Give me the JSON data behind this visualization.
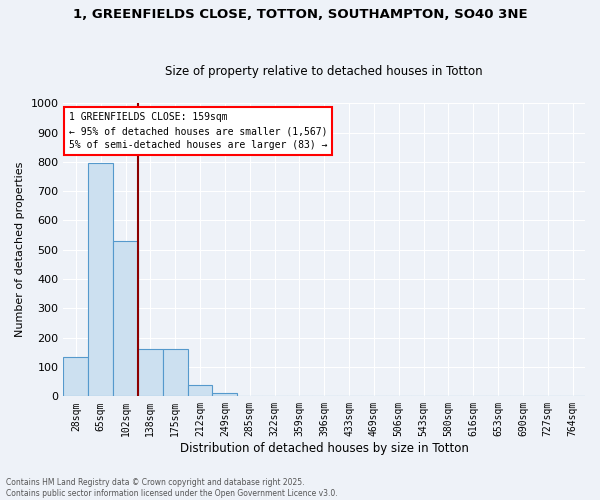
{
  "title_line1": "1, GREENFIELDS CLOSE, TOTTON, SOUTHAMPTON, SO40 3NE",
  "title_line2": "Size of property relative to detached houses in Totton",
  "xlabel": "Distribution of detached houses by size in Totton",
  "ylabel": "Number of detached properties",
  "categories": [
    "28sqm",
    "65sqm",
    "102sqm",
    "138sqm",
    "175sqm",
    "212sqm",
    "249sqm",
    "285sqm",
    "322sqm",
    "359sqm",
    "396sqm",
    "433sqm",
    "469sqm",
    "506sqm",
    "543sqm",
    "580sqm",
    "616sqm",
    "653sqm",
    "690sqm",
    "727sqm",
    "764sqm"
  ],
  "values": [
    133,
    795,
    530,
    160,
    160,
    37,
    10,
    0,
    0,
    0,
    0,
    0,
    0,
    0,
    0,
    0,
    0,
    0,
    0,
    0,
    0
  ],
  "bar_color": "#cce0f0",
  "bar_edge_color": "#5599cc",
  "ylim": [
    0,
    1000
  ],
  "yticks": [
    0,
    100,
    200,
    300,
    400,
    500,
    600,
    700,
    800,
    900,
    1000
  ],
  "annotation_box_text": "1 GREENFIELDS CLOSE: 159sqm\n← 95% of detached houses are smaller (1,567)\n5% of semi-detached houses are larger (83) →",
  "property_line_color": "#8b0000",
  "background_color": "#eef2f8",
  "grid_color": "#d8e0ec",
  "footer_text": "Contains HM Land Registry data © Crown copyright and database right 2025.\nContains public sector information licensed under the Open Government Licence v3.0."
}
